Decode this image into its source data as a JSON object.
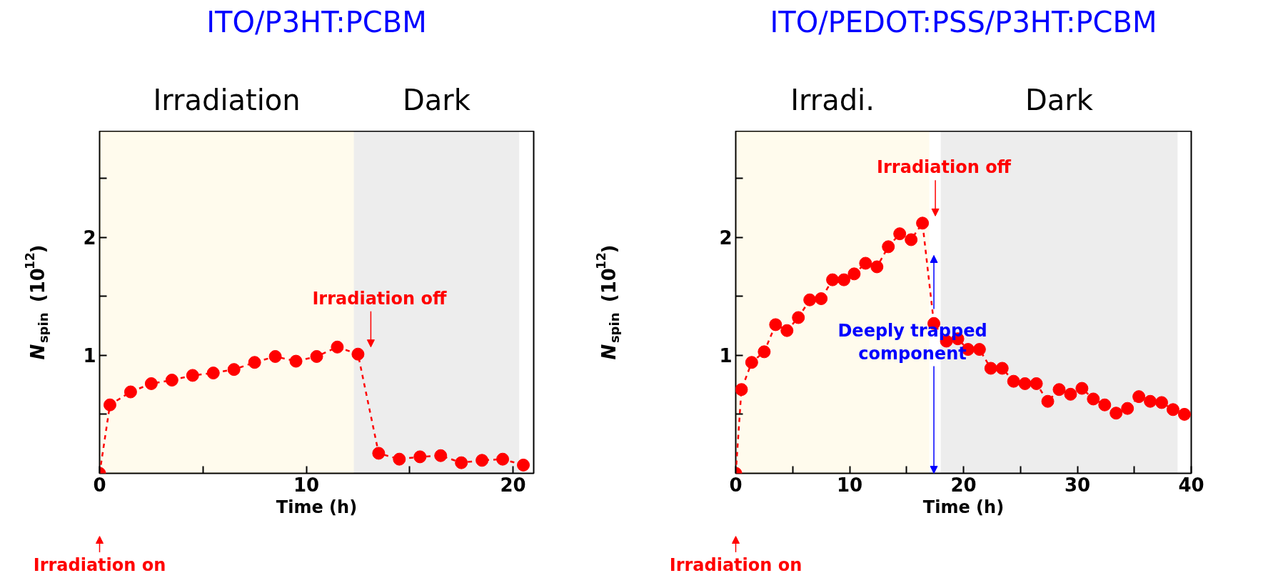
{
  "chart_data": [
    {
      "type": "line",
      "title": "ITO/P3HT:PCBM",
      "xlabel": "Time (h)",
      "ylabel": "N$_{spin}$ (10$^{12}$)",
      "x": [
        0,
        0.5,
        1.5,
        2.5,
        3.5,
        4.5,
        5.5,
        6.5,
        7.5,
        8.5,
        9.5,
        10.5,
        11.5,
        12.5,
        13.5,
        14.5,
        15.5,
        16.5,
        17.5,
        18.5,
        19.5,
        20.5
      ],
      "series": [
        {
          "color": "#ff0000",
          "values": [
            0,
            0.58,
            0.69,
            0.76,
            0.79,
            0.83,
            0.85,
            0.88,
            0.94,
            0.99,
            0.95,
            0.99,
            1.07,
            1.01,
            0.17,
            0.12,
            0.14,
            0.15,
            0.09,
            0.11,
            0.12,
            0.07
          ]
        }
      ],
      "xlim": [
        0,
        21
      ],
      "ylim": [
        0,
        2.9
      ],
      "xticks": [
        0,
        {
          "value": 5,
          "label": null
        },
        10,
        {
          "value": 15,
          "label": null
        },
        20
      ],
      "yticks": [
        {
          "value": 0.5,
          "label": null
        },
        1,
        {
          "value": 1.5,
          "label": null
        },
        2,
        {
          "value": 2.5,
          "label": null
        }
      ],
      "bands": [
        {
          "axis": "x",
          "from": 0,
          "to": 12.3,
          "label": "Irradiation",
          "color": "#ffc000"
        },
        {
          "axis": "x",
          "from": 12.3,
          "to": 20.3,
          "label": "Dark",
          "color": "#000000"
        }
      ],
      "annotations": [
        "Irradiation on",
        {
          "text": "Irradiation off",
          "x": 12.5,
          "y": 1.01
        }
      ],
      "marker": "circle",
      "line_style": "dashed",
      "grid": false
    },
    {
      "type": "line",
      "title": "ITO/PEDOT:PSS/P3HT:PCBM",
      "xlabel": "Time (h)",
      "ylabel": "N$_{spin}$ (10$^{12}$)",
      "x": [
        0,
        0.5,
        1.4,
        2.5,
        3.5,
        4.5,
        5.5,
        6.5,
        7.5,
        8.5,
        9.5,
        10.4,
        11.4,
        12.4,
        13.4,
        14.4,
        15.4,
        16.4,
        17.4,
        18.5,
        19.5,
        20.4,
        21.4,
        22.4,
        23.4,
        24.4,
        25.4,
        26.4,
        27.4,
        28.4,
        29.4,
        30.4,
        31.4,
        32.4,
        33.4,
        34.4,
        35.4,
        36.4,
        37.4,
        38.4,
        39.4
      ],
      "series": [
        {
          "color": "#ff0000",
          "values": [
            0,
            0.71,
            0.94,
            1.03,
            1.26,
            1.21,
            1.32,
            1.47,
            1.48,
            1.64,
            1.64,
            1.69,
            1.78,
            1.75,
            1.92,
            2.03,
            1.98,
            2.12,
            1.27,
            1.12,
            1.14,
            1.05,
            1.05,
            0.89,
            0.89,
            0.78,
            0.76,
            0.76,
            0.61,
            0.71,
            0.67,
            0.72,
            0.63,
            0.58,
            0.51,
            0.55,
            0.65,
            0.61,
            0.6,
            0.54,
            0.5
          ]
        }
      ],
      "xlim": [
        0,
        40
      ],
      "ylim": [
        0,
        2.9
      ],
      "xticks": [
        0,
        {
          "value": 5,
          "label": null
        },
        10,
        {
          "value": 15,
          "label": null
        },
        20,
        {
          "value": 25,
          "label": null
        },
        30,
        {
          "value": 35,
          "label": null
        },
        40
      ],
      "yticks": [
        {
          "value": 0.5,
          "label": null
        },
        1,
        {
          "value": 1.5,
          "label": null
        },
        2,
        {
          "value": 2.5,
          "label": null
        }
      ],
      "bands": [
        {
          "axis": "x",
          "from": 0,
          "to": 17,
          "label": "Irradi.",
          "color": "#ffc000"
        },
        {
          "axis": "x",
          "from": 18,
          "to": 38.8,
          "label": "Dark",
          "color": "#000000"
        }
      ],
      "annotations": [
        "Irradiation on",
        {
          "text": "Irradiation off",
          "x": 16.4,
          "y": 2.12
        },
        "Deeply trapped component"
      ],
      "marker": "circle",
      "line_style": "dashed",
      "grid": false
    }
  ]
}
